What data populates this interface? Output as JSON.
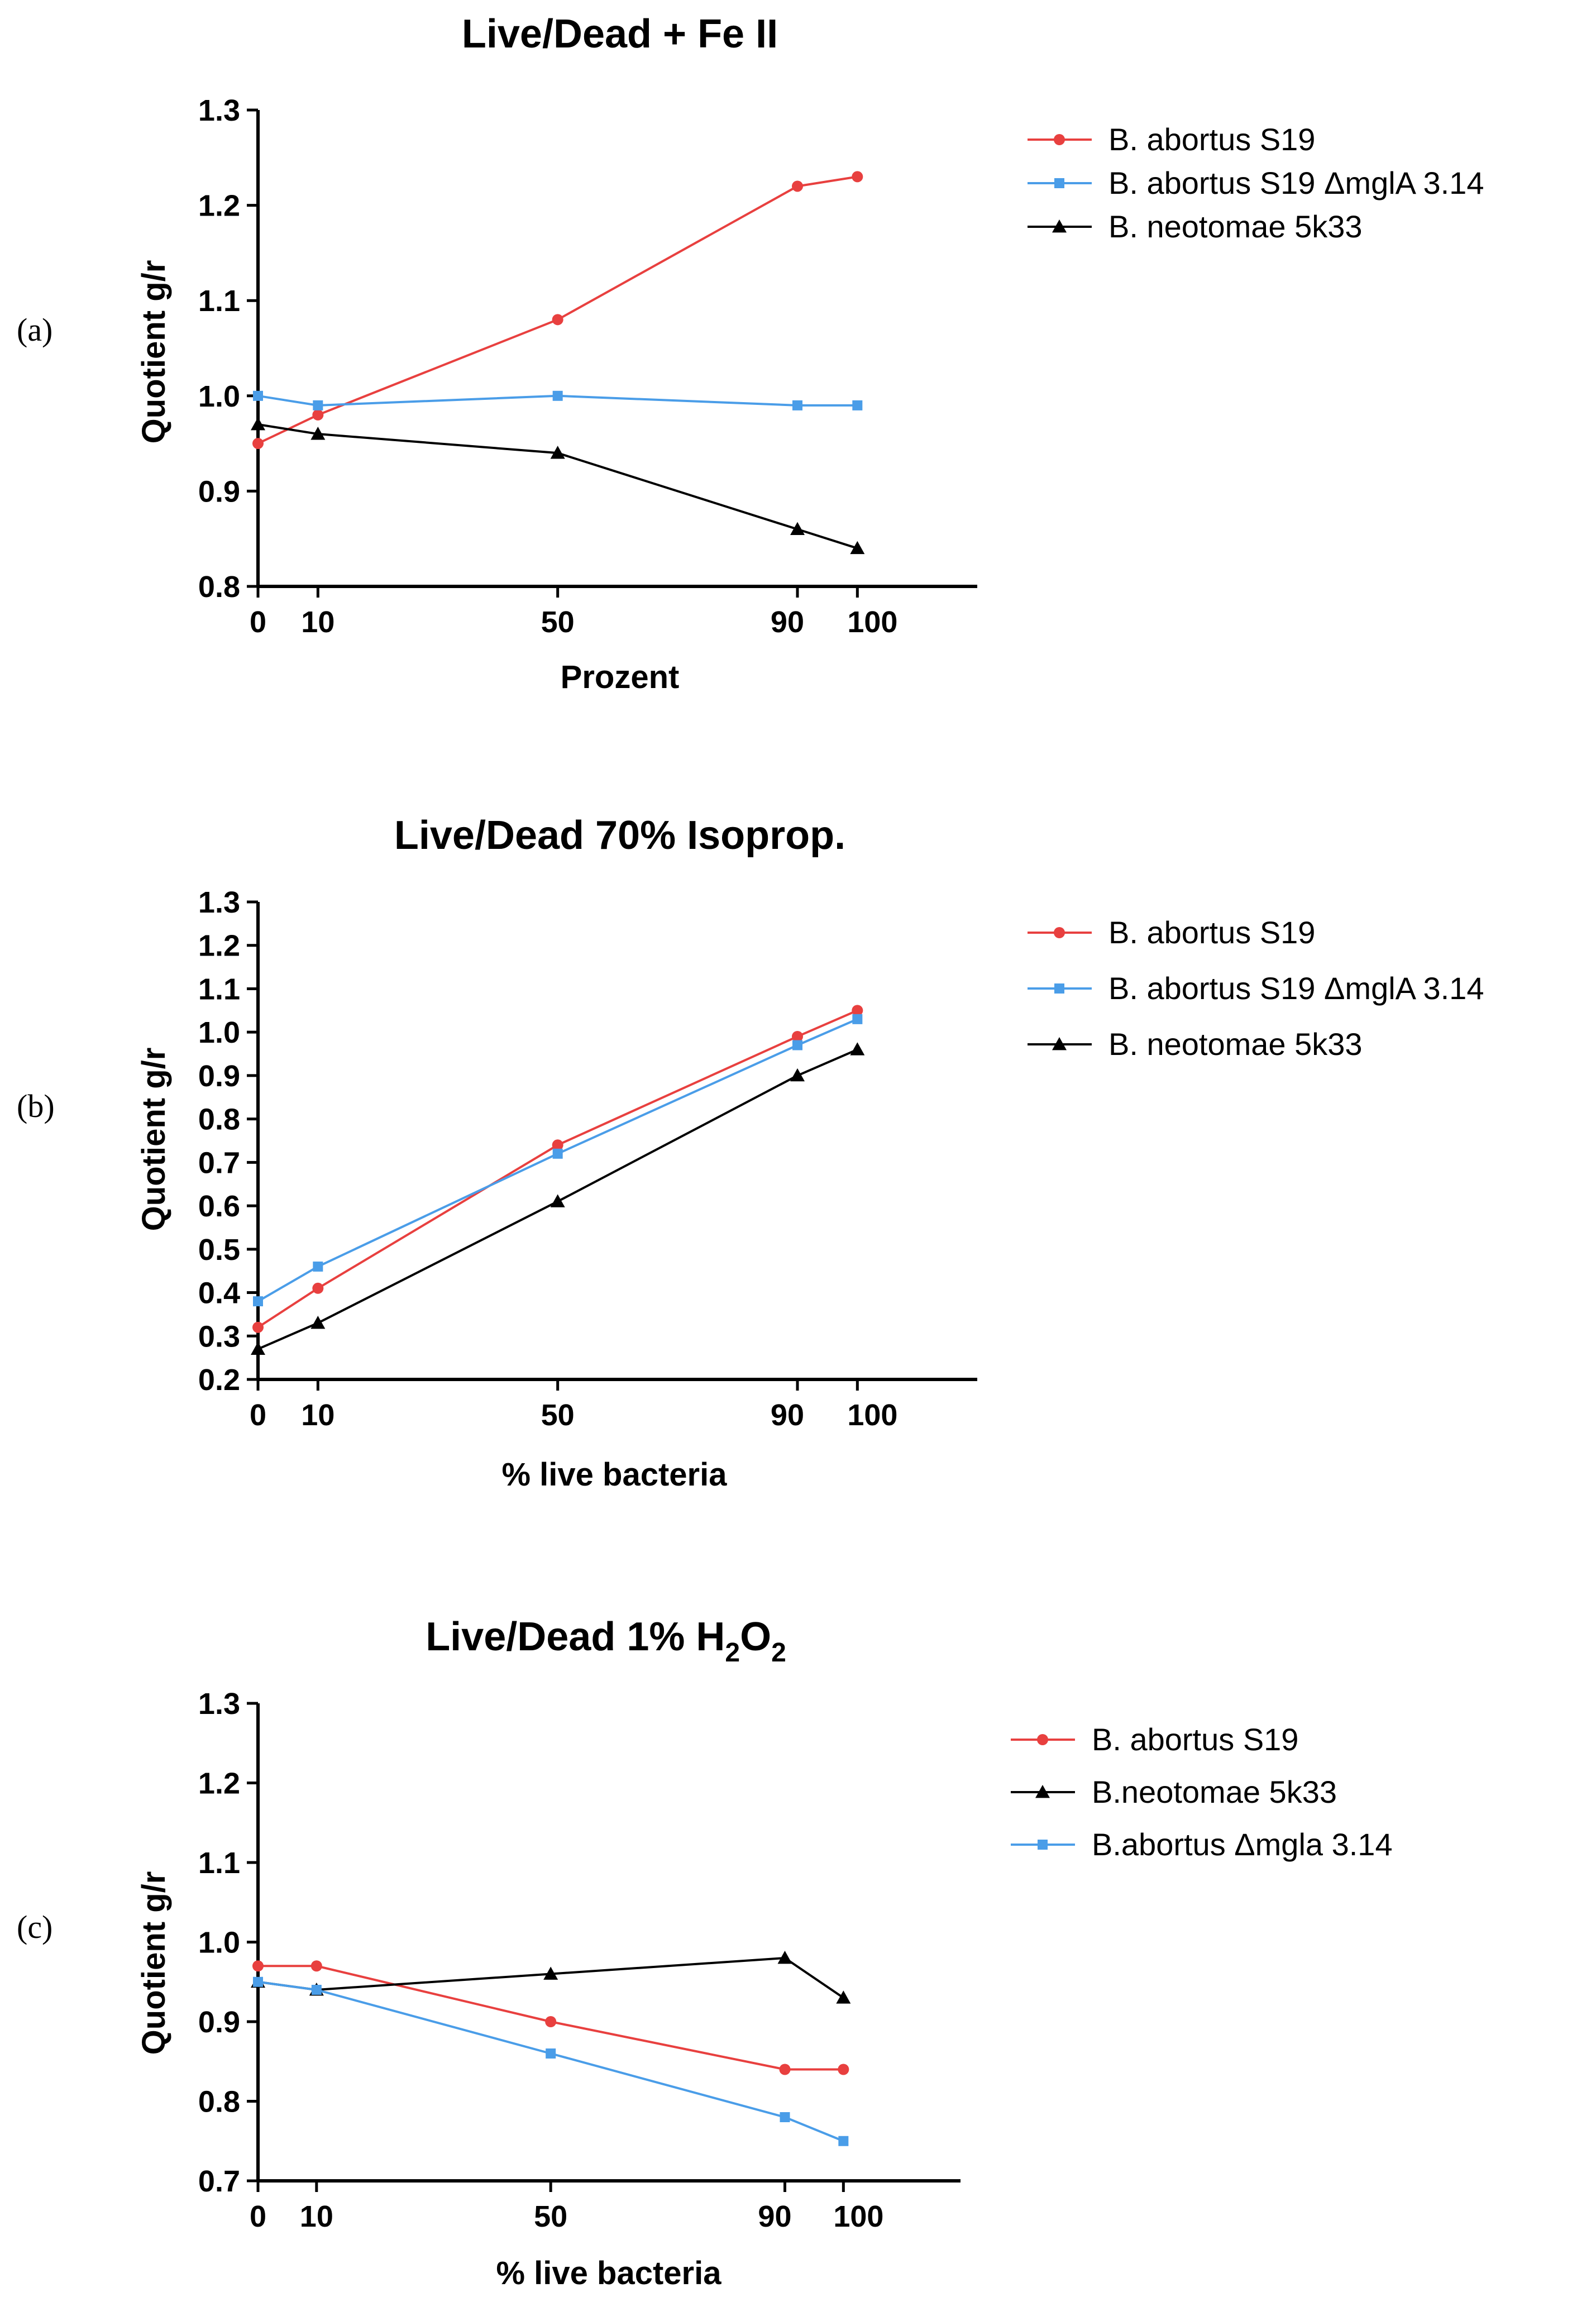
{
  "chart_data": [
    {
      "type": "line",
      "panel_label": "(a)",
      "title": "Live/Dead + Fe II",
      "xlabel": "Prozent",
      "ylabel": "Quotient g/r",
      "x": [
        0,
        10,
        50,
        90,
        100
      ],
      "xlim": [
        0,
        120
      ],
      "ylim": [
        0.8,
        1.3
      ],
      "x_ticks": [
        "0",
        "10",
        "50",
        "90",
        "100"
      ],
      "y_ticks": [
        "0.8",
        "0.9",
        "1.0",
        "1.1",
        "1.2",
        "1.3"
      ],
      "legend_position": "right",
      "series": [
        {
          "name": "B. abortus S19",
          "color": "#e8403f",
          "marker": "circle",
          "values": [
            0.95,
            0.98,
            1.08,
            1.22,
            1.23
          ]
        },
        {
          "name": "B. abortus S19 ΔmglA 3.14",
          "color": "#4a9de8",
          "marker": "square",
          "values": [
            1.0,
            0.99,
            1.0,
            0.99,
            0.99
          ]
        },
        {
          "name": "B. neotomae 5k33",
          "color": "#000000",
          "marker": "triangle",
          "values": [
            0.97,
            0.96,
            0.94,
            0.86,
            0.84
          ]
        }
      ]
    },
    {
      "type": "line",
      "panel_label": "(b)",
      "title": "Live/Dead 70% Isoprop.",
      "xlabel": "% live bacteria",
      "ylabel": "Quotient g/r",
      "x": [
        0,
        10,
        50,
        90,
        100
      ],
      "xlim": [
        0,
        120
      ],
      "ylim": [
        0.2,
        1.3
      ],
      "x_ticks": [
        "0",
        "10",
        "50",
        "90",
        "100"
      ],
      "y_ticks": [
        "0.2",
        "0.3",
        "0.4",
        "0.5",
        "0.6",
        "0.7",
        "0.8",
        "0.9",
        "1.0",
        "1.1",
        "1.2",
        "1.3"
      ],
      "legend_position": "right",
      "series": [
        {
          "name": "B. abortus S19",
          "color": "#e8403f",
          "marker": "circle",
          "values": [
            0.32,
            0.41,
            0.74,
            0.99,
            1.05
          ]
        },
        {
          "name": "B. abortus S19  ΔmglA 3.14",
          "color": "#4a9de8",
          "marker": "square",
          "values": [
            0.38,
            0.46,
            0.72,
            0.97,
            1.03
          ]
        },
        {
          "name": "B. neotomae 5k33",
          "color": "#000000",
          "marker": "triangle",
          "values": [
            0.27,
            0.33,
            0.61,
            0.9,
            0.96
          ]
        }
      ]
    },
    {
      "type": "line",
      "panel_label": "(c)",
      "title": "Live/Dead 1% H",
      "title_sub1": "2",
      "title_mid": "O",
      "title_sub2": "2",
      "xlabel": "% live bacteria",
      "ylabel": "Quotient g/r",
      "x": [
        0,
        10,
        50,
        90,
        100
      ],
      "xlim": [
        0,
        120
      ],
      "ylim": [
        0.7,
        1.3
      ],
      "x_ticks": [
        "0",
        "10",
        "50",
        "90",
        "100"
      ],
      "y_ticks": [
        "0.7",
        "0.8",
        "0.9",
        "1.0",
        "1.1",
        "1.2",
        "1.3"
      ],
      "legend_position": "right",
      "series": [
        {
          "name": "B. abortus S19",
          "color": "#e8403f",
          "marker": "circle",
          "values": [
            0.97,
            0.97,
            0.9,
            0.84,
            0.84
          ]
        },
        {
          "name": "B.neotomae 5k33",
          "color": "#000000",
          "marker": "triangle",
          "values": [
            0.95,
            0.94,
            0.96,
            0.98,
            0.93
          ]
        },
        {
          "name": "B.abortus Δmgla 3.14",
          "color": "#4a9de8",
          "marker": "square",
          "values": [
            0.95,
            0.94,
            0.86,
            0.78,
            0.75
          ]
        }
      ]
    }
  ]
}
